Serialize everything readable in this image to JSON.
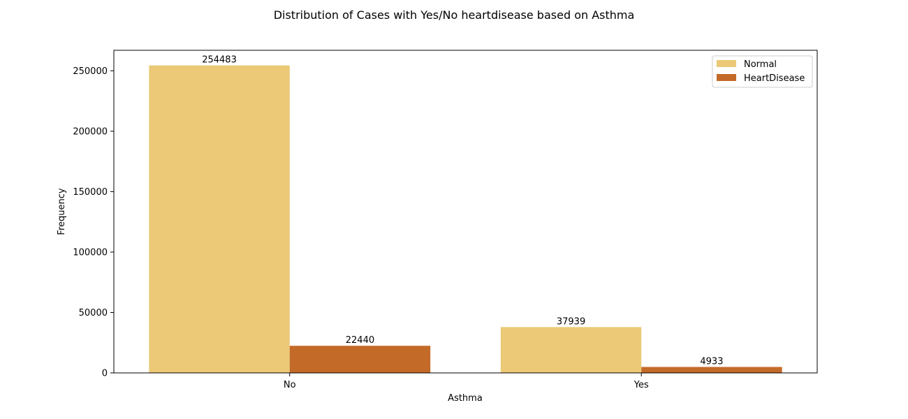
{
  "chart_data": {
    "type": "bar",
    "title": "Distribution of Cases with Yes/No heartdisease based on Asthma",
    "xlabel": "Asthma",
    "ylabel": "Frequency",
    "categories": [
      "No",
      "Yes"
    ],
    "series": [
      {
        "name": "Normal",
        "color": "#ebc977",
        "values": [
          254483,
          37939
        ]
      },
      {
        "name": "HeartDisease",
        "color": "#c46a28",
        "values": [
          22440,
          4933
        ]
      }
    ],
    "ylim": [
      0,
      267000
    ],
    "yticks": [
      0,
      50000,
      100000,
      150000,
      200000,
      250000
    ],
    "grid": false,
    "legend_position": "top-right",
    "data_labels": true
  }
}
